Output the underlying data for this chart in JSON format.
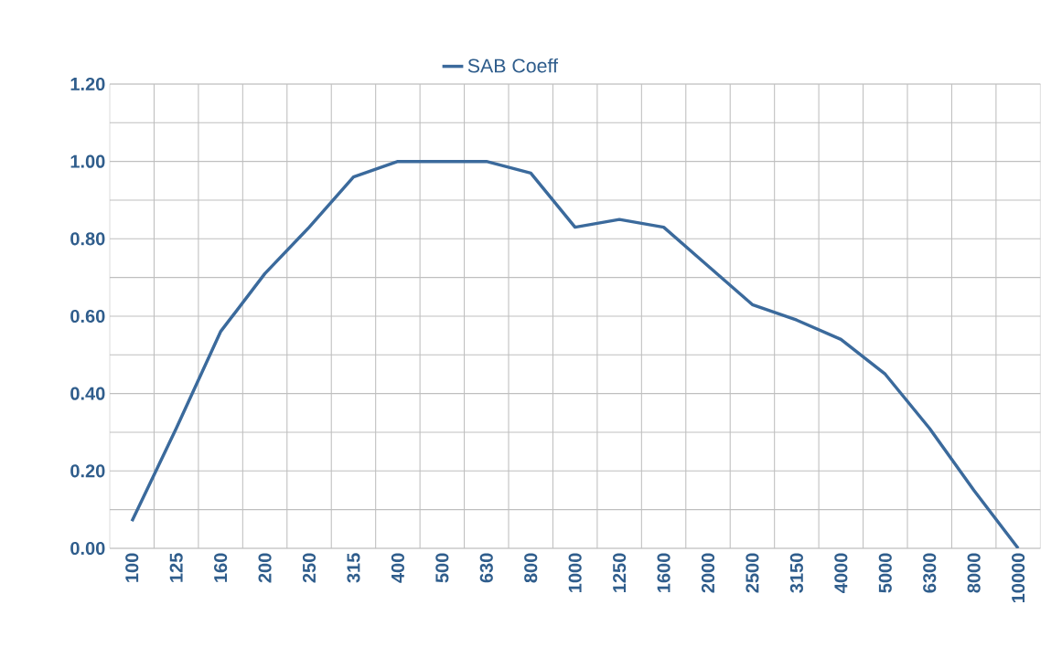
{
  "chart_data": {
    "type": "line",
    "categories": [
      "100",
      "125",
      "160",
      "200",
      "250",
      "315",
      "400",
      "500",
      "630",
      "800",
      "1000",
      "1250",
      "1600",
      "2000",
      "2500",
      "3150",
      "4000",
      "5000",
      "6300",
      "8000",
      "10000"
    ],
    "series": [
      {
        "name": "SAB Coeff",
        "color": "#3b6a9c",
        "values": [
          0.07,
          0.31,
          0.56,
          0.71,
          0.83,
          0.96,
          1.0,
          1.0,
          1.0,
          0.97,
          0.83,
          0.85,
          0.83,
          0.73,
          0.63,
          0.59,
          0.54,
          0.45,
          0.31,
          0.15,
          0.0
        ]
      }
    ],
    "ylim": [
      0,
      1.2
    ],
    "yticks": [
      {
        "value": 0,
        "label": "0.00"
      },
      {
        "value": 0.2,
        "label": "0.20"
      },
      {
        "value": 0.4,
        "label": "0.40"
      },
      {
        "value": 0.6,
        "label": "0.60"
      },
      {
        "value": 0.8,
        "label": "0.80"
      },
      {
        "value": 1.0,
        "label": "1.00"
      },
      {
        "value": 1.2,
        "label": "1.20"
      }
    ],
    "grid": true,
    "legend": "top",
    "marker": "none",
    "line_style": "solid"
  }
}
